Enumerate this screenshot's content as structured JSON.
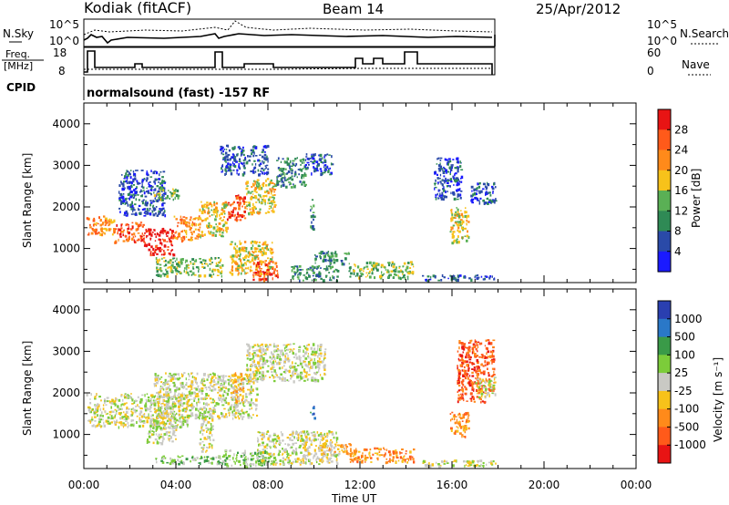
{
  "header": {
    "station": "Kodiak (fitACF)",
    "beam": "Beam 14",
    "date": "25/Apr/2012"
  },
  "top_panels": {
    "nsky": {
      "label": "N.Sky",
      "left_ticks": [
        "10^5",
        "10^0"
      ],
      "right_ticks": [
        "10^5",
        "10^0"
      ],
      "right_label": "N.Search"
    },
    "freq": {
      "label_lines": [
        "Freq.",
        "[MHz]"
      ],
      "left_ticks": [
        "18",
        "8"
      ],
      "right_ticks": [
        "60",
        "0"
      ],
      "right_label": "Nave"
    },
    "cpid": {
      "label": "CPID",
      "text": "normalsound (fast) -157 RF"
    }
  },
  "chart_data": [
    {
      "type": "heatmap",
      "name": "Power",
      "ylabel": "Slant Range [km]",
      "xlabel": "",
      "xlim": [
        0,
        24
      ],
      "ylim": [
        180,
        4500
      ],
      "y_ticks": [
        1000,
        2000,
        3000,
        4000
      ],
      "x_ticks": [
        0,
        4,
        8,
        12,
        16,
        20,
        24
      ],
      "colorbar": {
        "label": "Power [dB]",
        "ticks": [
          "4",
          "8",
          "12",
          "16",
          "20",
          "24",
          "28"
        ],
        "colors": [
          "#1a1aff",
          "#2a4aa8",
          "#2f8a55",
          "#5ab055",
          "#f7c21a",
          "#ff8a1a",
          "#ff5a1a",
          "#e81414"
        ]
      },
      "regions": [
        {
          "t0": 0.1,
          "t1": 1.3,
          "r0": 1350,
          "r1": 1800,
          "level": 5
        },
        {
          "t0": 1.3,
          "t1": 2.6,
          "r0": 1150,
          "r1": 1650,
          "level": 6
        },
        {
          "t0": 2.6,
          "t1": 3.9,
          "r0": 850,
          "r1": 1500,
          "level": 7
        },
        {
          "t0": 3.9,
          "t1": 5.0,
          "r0": 1200,
          "r1": 1800,
          "level": 5
        },
        {
          "t0": 5.0,
          "t1": 6.2,
          "r0": 1300,
          "r1": 2150,
          "level": 4
        },
        {
          "t0": 6.2,
          "t1": 7.0,
          "r0": 1700,
          "r1": 2300,
          "level": 6
        },
        {
          "t0": 7.0,
          "t1": 8.3,
          "r0": 1850,
          "r1": 2700,
          "level": 4
        },
        {
          "t0": 8.3,
          "t1": 9.6,
          "r0": 2500,
          "r1": 3200,
          "level": 2
        },
        {
          "t0": 9.6,
          "t1": 10.8,
          "r0": 2800,
          "r1": 3300,
          "level": 1
        },
        {
          "t0": 1.5,
          "t1": 3.5,
          "r0": 1800,
          "r1": 2900,
          "level": 1
        },
        {
          "t0": 3.0,
          "t1": 4.1,
          "r0": 2200,
          "r1": 2500,
          "level": 3
        },
        {
          "t0": 3.1,
          "t1": 6.0,
          "r0": 350,
          "r1": 800,
          "level": 3
        },
        {
          "t0": 6.3,
          "t1": 8.2,
          "r0": 400,
          "r1": 1200,
          "level": 4
        },
        {
          "t0": 7.3,
          "t1": 8.4,
          "r0": 250,
          "r1": 700,
          "level": 6
        },
        {
          "t0": 9.0,
          "t1": 11.0,
          "r0": 250,
          "r1": 600,
          "level": 2
        },
        {
          "t0": 10.0,
          "t1": 11.5,
          "r0": 650,
          "r1": 950,
          "level": 2
        },
        {
          "t0": 11.5,
          "t1": 14.3,
          "r0": 300,
          "r1": 700,
          "level": 3
        },
        {
          "t0": 14.5,
          "t1": 17.9,
          "r0": 250,
          "r1": 380,
          "level": 1
        },
        {
          "t0": 15.9,
          "t1": 16.7,
          "r0": 1150,
          "r1": 2000,
          "level": 4
        },
        {
          "t0": 16.8,
          "t1": 17.9,
          "r0": 2100,
          "r1": 2600,
          "level": 1
        },
        {
          "t0": 15.2,
          "t1": 16.4,
          "r0": 2200,
          "r1": 3200,
          "level": 1
        },
        {
          "t0": 9.8,
          "t1": 10.0,
          "r0": 1400,
          "r1": 2200,
          "level": 2
        },
        {
          "t0": 5.9,
          "t1": 8.0,
          "r0": 2800,
          "r1": 3500,
          "level": 1
        }
      ]
    },
    {
      "type": "heatmap",
      "name": "Velocity",
      "ylabel": "Slant Range [km]",
      "xlabel": "Time UT",
      "xlim": [
        0,
        24
      ],
      "ylim": [
        180,
        4500
      ],
      "y_ticks": [
        1000,
        2000,
        3000,
        4000
      ],
      "x_ticks": [
        0,
        4,
        8,
        12,
        16,
        20,
        24
      ],
      "x_tick_labels": [
        "00:00",
        "04:00",
        "08:00",
        "12:00",
        "16:00",
        "20:00",
        "00:00"
      ],
      "colorbar": {
        "label": "Velocity [m s⁻¹]",
        "ticks": [
          "1000",
          "500",
          "100",
          "25",
          "-25",
          "-100",
          "-500",
          "-1000"
        ],
        "colors": [
          "#2a3fb0",
          "#2a78c8",
          "#3a9a48",
          "#7ccc3a",
          "#c9c9c4",
          "#f7c21a",
          "#ff8a1a",
          "#ff5a1a",
          "#e81414"
        ]
      },
      "regions": [
        {
          "t0": 0.1,
          "t1": 4.5,
          "r0": 1200,
          "r1": 2000,
          "level": 4
        },
        {
          "t0": 3.0,
          "t1": 7.5,
          "r0": 1400,
          "r1": 2500,
          "level": 4
        },
        {
          "t0": 7.0,
          "t1": 10.5,
          "r0": 2300,
          "r1": 3200,
          "level": 4
        },
        {
          "t0": 2.7,
          "t1": 4.0,
          "r0": 800,
          "r1": 1500,
          "level": 4
        },
        {
          "t0": 5.0,
          "t1": 5.6,
          "r0": 600,
          "r1": 1500,
          "level": 4
        },
        {
          "t0": 6.4,
          "t1": 6.9,
          "r0": 1800,
          "r1": 2500,
          "level": 5
        },
        {
          "t0": 3.1,
          "t1": 6.0,
          "r0": 300,
          "r1": 500,
          "level": 3
        },
        {
          "t0": 6.0,
          "t1": 8.3,
          "r0": 250,
          "r1": 650,
          "level": 3
        },
        {
          "t0": 7.5,
          "t1": 11.0,
          "r0": 300,
          "r1": 1100,
          "level": 4
        },
        {
          "t0": 11.5,
          "t1": 14.3,
          "r0": 350,
          "r1": 700,
          "level": 6
        },
        {
          "t0": 10.2,
          "t1": 11.8,
          "r0": 550,
          "r1": 800,
          "level": 5
        },
        {
          "t0": 15.9,
          "t1": 16.7,
          "r0": 950,
          "r1": 1600,
          "level": 6
        },
        {
          "t0": 16.2,
          "t1": 17.8,
          "r0": 1800,
          "r1": 3300,
          "level": 7
        },
        {
          "t0": 17.0,
          "t1": 17.9,
          "r0": 1900,
          "r1": 2400,
          "level": 4
        },
        {
          "t0": 9.8,
          "t1": 10.0,
          "r0": 1400,
          "r1": 1700,
          "level": 1
        },
        {
          "t0": 14.5,
          "t1": 17.9,
          "r0": 250,
          "r1": 400,
          "level": 4
        }
      ]
    }
  ]
}
